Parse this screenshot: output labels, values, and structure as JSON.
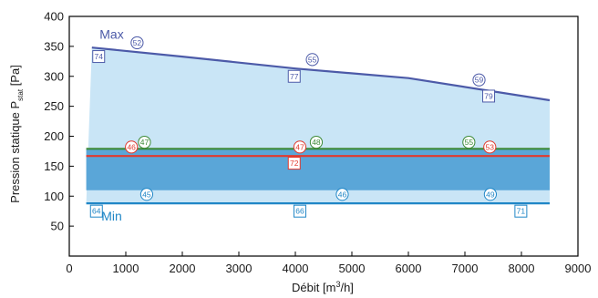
{
  "chart_data": {
    "type": "area",
    "xlabel_main": "Débit [m",
    "xlabel_sup": "3",
    "xlabel_end": "/h]",
    "ylabel_main": "Pression statique P",
    "ylabel_sub": "stat",
    "ylabel_end": " [Pa]",
    "xlim": [
      0,
      9000
    ],
    "ylim": [
      0,
      400
    ],
    "xticks": [
      0,
      1000,
      2000,
      3000,
      4000,
      5000,
      6000,
      7000,
      8000,
      9000
    ],
    "yticks": [
      50,
      100,
      150,
      200,
      250,
      300,
      350,
      400
    ],
    "grid": false,
    "region": {
      "outer": [
        [
          400,
          348
        ],
        [
          2000,
          333
        ],
        [
          4000,
          313
        ],
        [
          6000,
          297
        ],
        [
          8500,
          260
        ],
        [
          8500,
          88
        ],
        [
          300,
          88
        ]
      ],
      "inner": [
        [
          300,
          178
        ],
        [
          8500,
          178
        ],
        [
          8500,
          110
        ],
        [
          300,
          110
        ]
      ]
    },
    "colors": {
      "outer_fill": "#c9e5f6",
      "inner_fill": "#5aa6d8",
      "max_line": "#4c5aa8",
      "min_line": "#1f86c6",
      "green_line": "#3d8a38",
      "red_line": "#e23a2e",
      "axis": "#000000"
    },
    "series": [
      {
        "name": "Max",
        "color_key": "max_line",
        "x": [
          400,
          2000,
          4000,
          6000,
          8500
        ],
        "y": [
          348,
          333,
          313,
          297,
          260
        ]
      },
      {
        "name": "",
        "color_key": "green_line",
        "x": [
          300,
          8500
        ],
        "y": [
          179,
          179
        ]
      },
      {
        "name": "",
        "color_key": "red_line",
        "x": [
          300,
          8500
        ],
        "y": [
          167,
          167
        ]
      },
      {
        "name": "Min",
        "color_key": "min_line",
        "x": [
          300,
          8500
        ],
        "y": [
          88,
          88
        ]
      }
    ],
    "series_labels": [
      {
        "text": "Max",
        "x": 750,
        "y": 370,
        "color_key": "max_line"
      },
      {
        "text": "Min",
        "x": 750,
        "y": 67,
        "color_key": "min_line"
      }
    ],
    "annotations": [
      {
        "text": "52",
        "shape": "circle",
        "color_key": "max_line",
        "x": 1200,
        "y": 356
      },
      {
        "text": "74",
        "shape": "square",
        "color_key": "max_line",
        "x": 520,
        "y": 333
      },
      {
        "text": "55",
        "shape": "circle",
        "color_key": "max_line",
        "x": 4300,
        "y": 328
      },
      {
        "text": "77",
        "shape": "square",
        "color_key": "max_line",
        "x": 3980,
        "y": 300
      },
      {
        "text": "59",
        "shape": "circle",
        "color_key": "max_line",
        "x": 7250,
        "y": 294
      },
      {
        "text": "79",
        "shape": "square",
        "color_key": "max_line",
        "x": 7420,
        "y": 267
      },
      {
        "text": "47",
        "shape": "circle",
        "color_key": "green_line",
        "x": 1330,
        "y": 190
      },
      {
        "text": "48",
        "shape": "circle",
        "color_key": "green_line",
        "x": 4370,
        "y": 190
      },
      {
        "text": "55",
        "shape": "circle",
        "color_key": "green_line",
        "x": 7070,
        "y": 190
      },
      {
        "text": "46",
        "shape": "circle",
        "color_key": "red_line",
        "x": 1100,
        "y": 182
      },
      {
        "text": "47",
        "shape": "circle",
        "color_key": "red_line",
        "x": 4080,
        "y": 182
      },
      {
        "text": "53",
        "shape": "circle",
        "color_key": "red_line",
        "x": 7440,
        "y": 182
      },
      {
        "text": "72",
        "shape": "square",
        "color_key": "red_line",
        "x": 3980,
        "y": 155
      },
      {
        "text": "45",
        "shape": "circle",
        "color_key": "min_line",
        "x": 1370,
        "y": 103
      },
      {
        "text": "46",
        "shape": "circle",
        "color_key": "min_line",
        "x": 4830,
        "y": 103
      },
      {
        "text": "49",
        "shape": "circle",
        "color_key": "min_line",
        "x": 7450,
        "y": 103
      },
      {
        "text": "64",
        "shape": "square",
        "color_key": "min_line",
        "x": 480,
        "y": 75
      },
      {
        "text": "66",
        "shape": "square",
        "color_key": "min_line",
        "x": 4080,
        "y": 75
      },
      {
        "text": "71",
        "shape": "square",
        "color_key": "min_line",
        "x": 7990,
        "y": 75
      }
    ]
  }
}
